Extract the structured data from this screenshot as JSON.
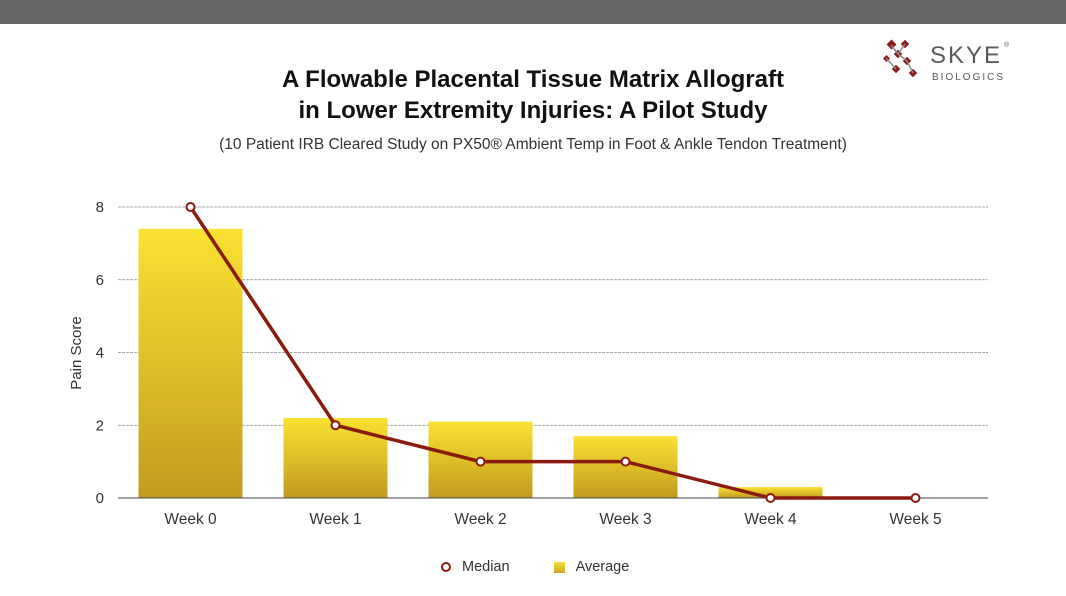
{
  "logo": {
    "name": "SKYE",
    "registered": "®",
    "sub": "BIOLOGICS"
  },
  "title_line1": "A Flowable Placental Tissue Matrix Allograft",
  "title_line2": "in Lower Extremity Injuries: A Pilot Study",
  "subtitle": "(10 Patient IRB Cleared Study on PX50® Ambient Temp in Foot & Ankle Tendon Treatment)",
  "colors": {
    "median_line": "#8b1a10",
    "bar_top": "#fae232",
    "bar_bottom": "#c19b1f",
    "top_bar": "#666866",
    "logo_accent": "#8b1a1a"
  },
  "chart_data": {
    "type": "bar",
    "categories": [
      "Week 0",
      "Week 1",
      "Week 2",
      "Week 3",
      "Week 4",
      "Week 5"
    ],
    "series": [
      {
        "name": "Average",
        "type": "bar",
        "values": [
          7.4,
          2.2,
          2.1,
          1.7,
          0.3,
          0
        ]
      },
      {
        "name": "Median",
        "type": "line",
        "values": [
          8,
          2,
          1,
          1,
          0,
          0
        ]
      }
    ],
    "ylabel": "Pain Score",
    "xlabel": "",
    "ylim": [
      0,
      8
    ],
    "yticks": [
      0,
      2,
      4,
      6,
      8
    ],
    "grid": true,
    "legend": "bottom"
  }
}
